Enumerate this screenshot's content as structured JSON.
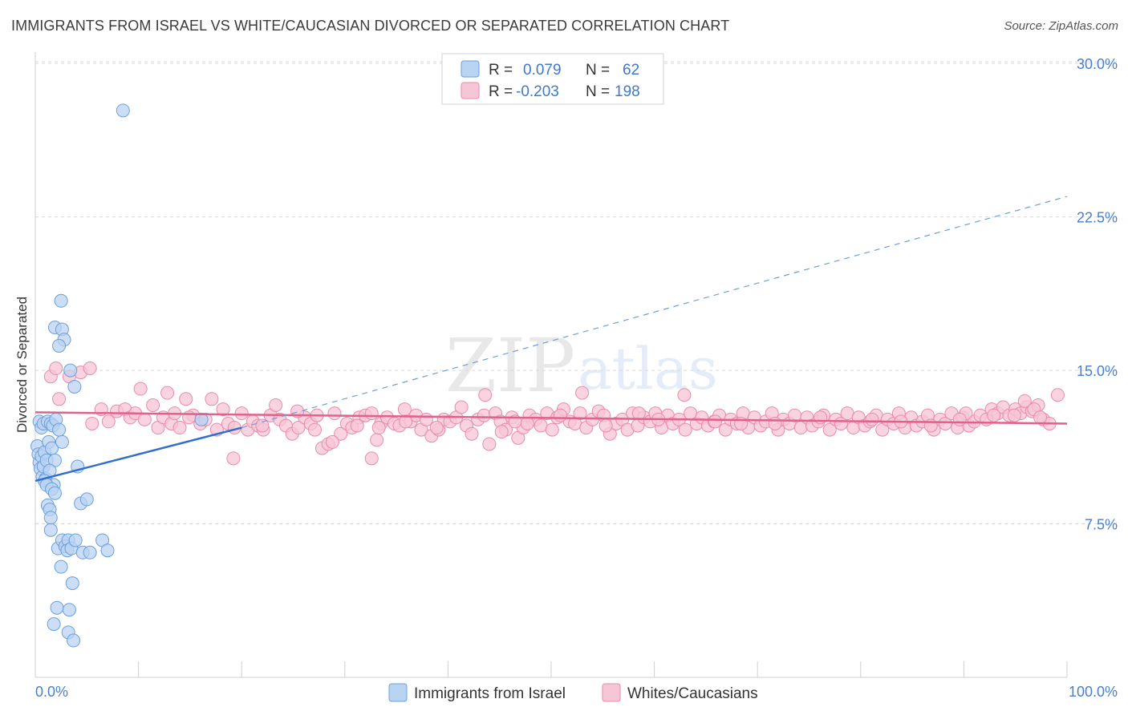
{
  "header": {
    "title": "IMMIGRANTS FROM ISRAEL VS WHITE/CAUCASIAN DIVORCED OR SEPARATED CORRELATION CHART",
    "source": "Source: ZipAtlas.com"
  },
  "watermark": {
    "part1": "ZIP",
    "part2": "atlas"
  },
  "colors": {
    "blue_fill": "#b9d3f3",
    "blue_stroke": "#6b9fdc",
    "blue_line": "#2f6fce",
    "pink_fill": "#f7c6d6",
    "pink_stroke": "#e98aab",
    "pink_line": "#e0628b",
    "tick_text": "#4a7fcf",
    "grid": "#d9d9d9"
  },
  "legend": {
    "rows": [
      {
        "r_label": "R =",
        "r_value": "0.079",
        "n_label": "N =",
        "n_value": "62"
      },
      {
        "r_label": "R =",
        "r_value": "-0.203",
        "n_label": "N =",
        "n_value": "198"
      }
    ]
  },
  "bottom_legend": {
    "items": [
      {
        "label": "Immigrants from Israel"
      },
      {
        "label": "Whites/Caucasians"
      }
    ]
  },
  "chart_data": {
    "type": "scatter",
    "title": "IMMIGRANTS FROM ISRAEL VS WHITE/CAUCASIAN DIVORCED OR SEPARATED CORRELATION CHART",
    "xlabel": "",
    "ylabel": "Divorced or Separated",
    "xlim": [
      0,
      100
    ],
    "ylim": [
      0,
      31.5
    ],
    "x_tick_labels": [
      "0.0%",
      "100.0%"
    ],
    "y_ticks": [
      7.5,
      15.0,
      22.5,
      30.0
    ],
    "y_tick_labels": [
      "7.5%",
      "15.0%",
      "22.5%",
      "30.0%"
    ],
    "grid": "horizontal dashed",
    "legend_position": "top-center",
    "series": [
      {
        "name": "Immigrants from Israel",
        "R": 0.079,
        "N": 62,
        "trend": {
          "x": [
            0,
            20
          ],
          "y": [
            9.6,
            12.2
          ]
        },
        "trend_extrapolated": {
          "x": [
            20,
            100
          ],
          "y": [
            12.2,
            23.5
          ]
        },
        "points": [
          [
            0.2,
            11.3
          ],
          [
            0.3,
            10.9
          ],
          [
            0.4,
            10.5
          ],
          [
            0.5,
            10.2
          ],
          [
            0.6,
            10.8
          ],
          [
            0.7,
            9.8
          ],
          [
            0.8,
            10.3
          ],
          [
            0.9,
            11.0
          ],
          [
            1.0,
            9.7
          ],
          [
            1.1,
            10.6
          ],
          [
            0.4,
            12.5
          ],
          [
            0.6,
            12.2
          ],
          [
            0.8,
            12.4
          ],
          [
            1.2,
            12.5
          ],
          [
            1.5,
            12.4
          ],
          [
            1.7,
            12.3
          ],
          [
            2.0,
            12.6
          ],
          [
            2.3,
            12.1
          ],
          [
            1.3,
            11.5
          ],
          [
            1.6,
            11.2
          ],
          [
            2.6,
            11.5
          ],
          [
            1.9,
            10.6
          ],
          [
            1.4,
            10.1
          ],
          [
            1.8,
            9.4
          ],
          [
            0.9,
            9.6
          ],
          [
            1.1,
            9.4
          ],
          [
            1.6,
            9.2
          ],
          [
            1.9,
            9.0
          ],
          [
            4.1,
            10.3
          ],
          [
            4.4,
            8.5
          ],
          [
            5.0,
            8.7
          ],
          [
            1.2,
            8.4
          ],
          [
            1.4,
            8.2
          ],
          [
            1.5,
            7.8
          ],
          [
            1.5,
            7.2
          ],
          [
            2.2,
            6.3
          ],
          [
            2.6,
            6.7
          ],
          [
            2.9,
            6.4
          ],
          [
            3.2,
            6.7
          ],
          [
            3.1,
            6.2
          ],
          [
            3.5,
            6.3
          ],
          [
            3.9,
            6.7
          ],
          [
            4.6,
            6.1
          ],
          [
            5.3,
            6.1
          ],
          [
            6.5,
            6.7
          ],
          [
            7.0,
            6.2
          ],
          [
            2.5,
            5.4
          ],
          [
            3.6,
            4.6
          ],
          [
            2.1,
            3.4
          ],
          [
            3.3,
            3.3
          ],
          [
            1.8,
            2.6
          ],
          [
            3.2,
            2.2
          ],
          [
            3.7,
            1.8
          ],
          [
            1.9,
            17.1
          ],
          [
            2.6,
            17.0
          ],
          [
            2.8,
            16.5
          ],
          [
            2.3,
            16.2
          ],
          [
            2.5,
            18.4
          ],
          [
            3.4,
            15.0
          ],
          [
            3.8,
            14.2
          ],
          [
            8.5,
            27.7
          ],
          [
            16.1,
            12.6
          ]
        ]
      },
      {
        "name": "Whites/Caucasians",
        "R": -0.203,
        "N": 198,
        "trend": {
          "x": [
            0,
            100
          ],
          "y": [
            12.95,
            12.4
          ]
        },
        "points": [
          [
            1.5,
            14.7
          ],
          [
            2.0,
            15.1
          ],
          [
            2.3,
            13.6
          ],
          [
            3.3,
            14.7
          ],
          [
            4.4,
            14.9
          ],
          [
            5.3,
            15.1
          ],
          [
            5.5,
            12.4
          ],
          [
            6.4,
            13.1
          ],
          [
            7.1,
            12.5
          ],
          [
            7.9,
            13.0
          ],
          [
            8.7,
            13.1
          ],
          [
            9.2,
            12.7
          ],
          [
            9.7,
            12.9
          ],
          [
            10.2,
            14.1
          ],
          [
            10.6,
            12.6
          ],
          [
            11.4,
            13.3
          ],
          [
            11.9,
            12.2
          ],
          [
            12.4,
            12.7
          ],
          [
            12.8,
            13.9
          ],
          [
            13.2,
            12.4
          ],
          [
            13.5,
            12.9
          ],
          [
            14.0,
            12.2
          ],
          [
            14.6,
            13.6
          ],
          [
            15.3,
            12.8
          ],
          [
            16.0,
            12.4
          ],
          [
            16.5,
            12.6
          ],
          [
            17.1,
            13.6
          ],
          [
            17.6,
            12.1
          ],
          [
            18.2,
            13.1
          ],
          [
            18.7,
            12.4
          ],
          [
            19.3,
            12.2
          ],
          [
            20.0,
            12.9
          ],
          [
            20.6,
            12.1
          ],
          [
            21.1,
            12.5
          ],
          [
            21.6,
            12.3
          ],
          [
            22.1,
            12.1
          ],
          [
            22.8,
            12.8
          ],
          [
            23.3,
            13.3
          ],
          [
            23.7,
            12.6
          ],
          [
            24.3,
            12.3
          ],
          [
            24.9,
            11.9
          ],
          [
            25.5,
            12.2
          ],
          [
            26.1,
            12.7
          ],
          [
            26.7,
            12.4
          ],
          [
            27.3,
            12.8
          ],
          [
            27.8,
            11.2
          ],
          [
            28.4,
            11.4
          ],
          [
            29.0,
            12.9
          ],
          [
            29.6,
            11.9
          ],
          [
            30.2,
            12.4
          ],
          [
            30.7,
            12.2
          ],
          [
            31.4,
            12.7
          ],
          [
            32.0,
            12.8
          ],
          [
            32.6,
            12.9
          ],
          [
            33.1,
            11.6
          ],
          [
            33.5,
            12.4
          ],
          [
            34.1,
            12.7
          ],
          [
            34.8,
            12.4
          ],
          [
            35.3,
            12.3
          ],
          [
            35.8,
            13.1
          ],
          [
            36.4,
            12.5
          ],
          [
            36.9,
            12.8
          ],
          [
            37.4,
            12.1
          ],
          [
            37.9,
            12.6
          ],
          [
            38.4,
            11.8
          ],
          [
            39.1,
            12.1
          ],
          [
            39.6,
            12.6
          ],
          [
            40.2,
            12.5
          ],
          [
            40.8,
            12.7
          ],
          [
            41.3,
            13.2
          ],
          [
            41.8,
            12.3
          ],
          [
            42.3,
            11.9
          ],
          [
            42.9,
            12.6
          ],
          [
            43.5,
            12.8
          ],
          [
            44.0,
            11.4
          ],
          [
            44.6,
            12.9
          ],
          [
            45.1,
            12.5
          ],
          [
            45.6,
            12.1
          ],
          [
            46.2,
            12.7
          ],
          [
            46.8,
            11.7
          ],
          [
            47.3,
            12.2
          ],
          [
            47.9,
            12.8
          ],
          [
            48.5,
            12.6
          ],
          [
            49.0,
            12.3
          ],
          [
            49.6,
            12.9
          ],
          [
            50.1,
            12.1
          ],
          [
            50.6,
            12.7
          ],
          [
            51.2,
            13.1
          ],
          [
            51.8,
            12.5
          ],
          [
            52.3,
            12.4
          ],
          [
            52.8,
            12.9
          ],
          [
            53.4,
            12.2
          ],
          [
            54.0,
            12.6
          ],
          [
            54.6,
            13.0
          ],
          [
            55.1,
            12.8
          ],
          [
            55.7,
            11.9
          ],
          [
            56.3,
            12.4
          ],
          [
            56.9,
            12.6
          ],
          [
            57.4,
            12.1
          ],
          [
            57.9,
            12.9
          ],
          [
            58.4,
            12.3
          ],
          [
            59.0,
            12.7
          ],
          [
            59.6,
            12.5
          ],
          [
            60.1,
            12.9
          ],
          [
            60.7,
            12.2
          ],
          [
            61.3,
            12.8
          ],
          [
            61.8,
            12.4
          ],
          [
            62.4,
            12.6
          ],
          [
            63.0,
            12.1
          ],
          [
            63.5,
            12.9
          ],
          [
            64.1,
            12.4
          ],
          [
            64.6,
            12.7
          ],
          [
            65.2,
            12.3
          ],
          [
            65.8,
            12.5
          ],
          [
            66.3,
            12.8
          ],
          [
            66.9,
            12.1
          ],
          [
            67.4,
            12.6
          ],
          [
            68.0,
            12.4
          ],
          [
            68.6,
            12.9
          ],
          [
            69.1,
            12.2
          ],
          [
            69.7,
            12.7
          ],
          [
            70.3,
            12.3
          ],
          [
            70.8,
            12.5
          ],
          [
            71.4,
            12.9
          ],
          [
            72.0,
            12.1
          ],
          [
            72.5,
            12.6
          ],
          [
            73.1,
            12.4
          ],
          [
            73.6,
            12.8
          ],
          [
            74.2,
            12.2
          ],
          [
            74.8,
            12.7
          ],
          [
            75.3,
            12.3
          ],
          [
            75.9,
            12.5
          ],
          [
            76.4,
            12.8
          ],
          [
            77.0,
            12.1
          ],
          [
            77.6,
            12.6
          ],
          [
            78.1,
            12.4
          ],
          [
            78.7,
            12.9
          ],
          [
            79.3,
            12.2
          ],
          [
            79.8,
            12.7
          ],
          [
            80.4,
            12.3
          ],
          [
            80.9,
            12.5
          ],
          [
            81.5,
            12.8
          ],
          [
            82.1,
            12.1
          ],
          [
            82.6,
            12.6
          ],
          [
            83.2,
            12.4
          ],
          [
            83.7,
            12.9
          ],
          [
            84.3,
            12.2
          ],
          [
            84.9,
            12.7
          ],
          [
            85.4,
            12.3
          ],
          [
            86.0,
            12.5
          ],
          [
            86.5,
            12.8
          ],
          [
            87.1,
            12.1
          ],
          [
            87.7,
            12.6
          ],
          [
            88.2,
            12.4
          ],
          [
            88.8,
            12.9
          ],
          [
            89.4,
            12.2
          ],
          [
            89.9,
            12.7
          ],
          [
            90.5,
            12.3
          ],
          [
            91.0,
            12.5
          ],
          [
            91.6,
            12.8
          ],
          [
            92.2,
            12.6
          ],
          [
            92.7,
            13.1
          ],
          [
            93.3,
            12.9
          ],
          [
            93.8,
            13.2
          ],
          [
            94.4,
            12.8
          ],
          [
            95.0,
            13.1
          ],
          [
            95.5,
            12.9
          ],
          [
            96.1,
            13.2
          ],
          [
            96.6,
            13.0
          ],
          [
            97.2,
            13.3
          ],
          [
            97.7,
            12.6
          ],
          [
            98.3,
            12.4
          ],
          [
            99.1,
            13.8
          ],
          [
            43.6,
            13.8
          ],
          [
            53.0,
            13.9
          ],
          [
            62.9,
            13.8
          ],
          [
            45.2,
            12.0
          ],
          [
            19.2,
            10.7
          ],
          [
            28.8,
            11.5
          ],
          [
            32.6,
            10.7
          ],
          [
            33.3,
            12.2
          ],
          [
            46.5,
            12.5
          ],
          [
            58.5,
            12.9
          ],
          [
            68.4,
            12.4
          ],
          [
            76.1,
            12.7
          ],
          [
            83.9,
            12.5
          ],
          [
            90.2,
            12.9
          ],
          [
            94.9,
            12.8
          ],
          [
            95.9,
            13.5
          ],
          [
            96.8,
            13.1
          ],
          [
            22.0,
            12.3
          ],
          [
            25.4,
            13.0
          ],
          [
            27.1,
            12.1
          ],
          [
            31.2,
            12.3
          ],
          [
            35.9,
            12.5
          ],
          [
            38.9,
            12.2
          ],
          [
            47.7,
            12.4
          ],
          [
            50.9,
            12.8
          ],
          [
            55.3,
            12.3
          ],
          [
            60.4,
            12.6
          ],
          [
            65.9,
            12.5
          ],
          [
            71.7,
            12.4
          ],
          [
            81.1,
            12.6
          ],
          [
            86.8,
            12.3
          ],
          [
            89.6,
            12.6
          ],
          [
            92.9,
            12.8
          ],
          [
            97.4,
            12.7
          ],
          [
            14.9,
            12.7
          ]
        ]
      }
    ]
  }
}
